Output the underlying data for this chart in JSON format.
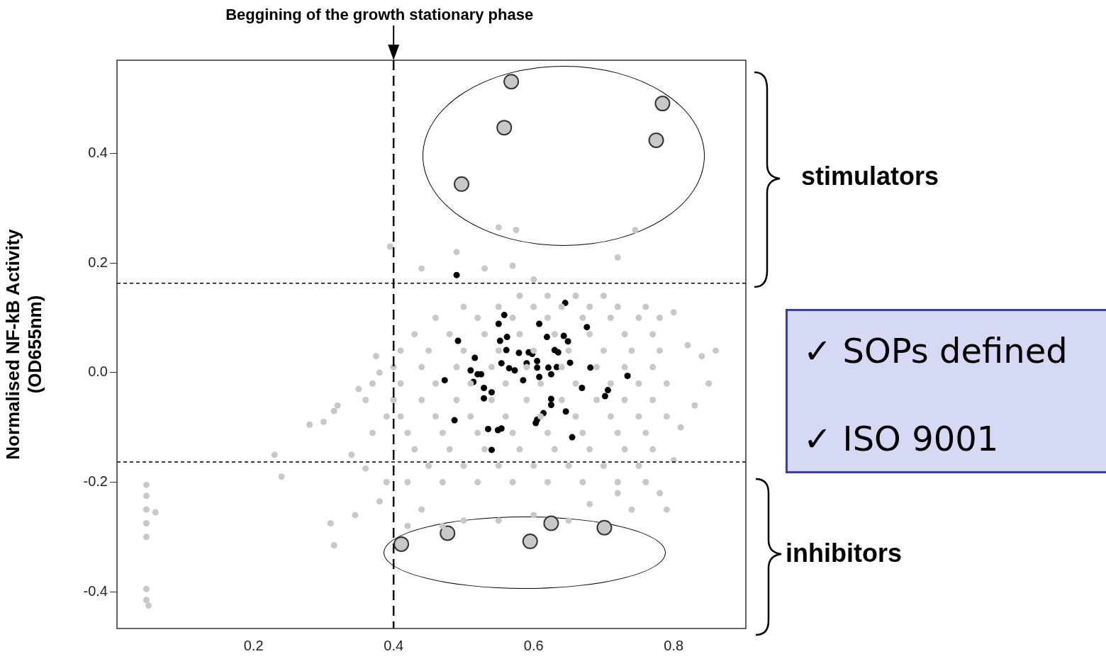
{
  "chart_data": {
    "type": "scatter",
    "ylabel": "Normalised NF-kB Activity\n(OD655nm)",
    "xlim": [
      0.005,
      0.903
    ],
    "ylim": [
      -0.467,
      0.57
    ],
    "xticks": [
      0.2,
      0.4,
      0.6,
      0.8
    ],
    "yticks": [
      -0.4,
      -0.2,
      {
        "value": 0,
        "label": "0.0"
      },
      0.2,
      0.4
    ],
    "grid": false,
    "legend": false,
    "marker": "circle",
    "ref_lines": [
      {
        "axis": "x",
        "value": 0.4,
        "label": "Beggining of the growth stationary phase",
        "line_style": "dashed",
        "color": "#000000"
      },
      {
        "axis": "y",
        "value": 0.163,
        "label": null,
        "line_style": "dotted",
        "color": "#000000"
      },
      {
        "axis": "y",
        "value": -0.163,
        "label": null,
        "line_style": "dotted",
        "color": "#000000"
      }
    ],
    "annotations": [
      "stimulators",
      "inhibitors",
      "✓  SOPs defined",
      "✓  ISO 9001"
    ],
    "series": [
      {
        "color": "#c8c8c8",
        "x": [
          0.047,
          0.047,
          0.047,
          0.047,
          0.047,
          0.06,
          0.047,
          0.047,
          0.05,
          0.23,
          0.24,
          0.28,
          0.3,
          0.315,
          0.32,
          0.31,
          0.315,
          0.34,
          0.345,
          0.36,
          0.38,
          0.39,
          0.395,
          0.49,
          0.55,
          0.575,
          0.745,
          0.72,
          0.44,
          0.53,
          0.57,
          0.6,
          0.35,
          0.36,
          0.37,
          0.38,
          0.375,
          0.39,
          0.37,
          0.8,
          0.82,
          0.84,
          0.86,
          0.85,
          0.83,
          0.81,
          0.8,
          0.79,
          0.78,
          0.76,
          0.74,
          0.72,
          0.68,
          0.65,
          0.6,
          0.55,
          0.5,
          0.47,
          0.44,
          0.42,
          0.58,
          0.62,
          0.66,
          0.7,
          0.5,
          0.55,
          0.6,
          0.64,
          0.68,
          0.72,
          0.76,
          0.46,
          0.52,
          0.57,
          0.62,
          0.67,
          0.71,
          0.75,
          0.78,
          0.43,
          0.48,
          0.53,
          0.58,
          0.63,
          0.68,
          0.73,
          0.77,
          0.41,
          0.45,
          0.5,
          0.55,
          0.6,
          0.65,
          0.7,
          0.74,
          0.78,
          0.4,
          0.44,
          0.49,
          0.54,
          0.59,
          0.64,
          0.69,
          0.73,
          0.77,
          0.41,
          0.46,
          0.51,
          0.56,
          0.61,
          0.66,
          0.71,
          0.75,
          0.79,
          0.4,
          0.44,
          0.49,
          0.54,
          0.59,
          0.64,
          0.69,
          0.73,
          0.77,
          0.41,
          0.46,
          0.51,
          0.56,
          0.61,
          0.66,
          0.71,
          0.75,
          0.79,
          0.42,
          0.47,
          0.52,
          0.57,
          0.62,
          0.67,
          0.72,
          0.76,
          0.43,
          0.48,
          0.53,
          0.58,
          0.63,
          0.68,
          0.73,
          0.77,
          0.45,
          0.5,
          0.55,
          0.6,
          0.65,
          0.7,
          0.75,
          0.42,
          0.47,
          0.52,
          0.57,
          0.62,
          0.67,
          0.72
        ],
        "values": [
          -0.205,
          -0.225,
          -0.25,
          -0.275,
          -0.3,
          -0.255,
          -0.395,
          -0.415,
          -0.425,
          -0.15,
          -0.19,
          -0.095,
          -0.09,
          -0.07,
          -0.06,
          -0.275,
          -0.315,
          -0.15,
          -0.26,
          -0.175,
          -0.235,
          -0.2,
          0.23,
          0.22,
          0.265,
          0.26,
          0.26,
          0.21,
          0.19,
          0.19,
          0.195,
          0.17,
          -0.03,
          -0.05,
          -0.02,
          0.0,
          0.03,
          -0.08,
          -0.11,
          0.11,
          0.05,
          0.03,
          0.04,
          -0.02,
          -0.06,
          -0.1,
          -0.16,
          -0.25,
          -0.22,
          -0.2,
          -0.25,
          -0.22,
          -0.24,
          -0.27,
          -0.26,
          -0.27,
          -0.27,
          -0.28,
          -0.25,
          -0.28,
          0.14,
          0.14,
          0.14,
          0.14,
          0.12,
          0.12,
          0.12,
          0.12,
          0.12,
          0.12,
          0.12,
          0.1,
          0.1,
          0.1,
          0.1,
          0.1,
          0.1,
          0.1,
          0.1,
          0.07,
          0.07,
          0.07,
          0.07,
          0.07,
          0.07,
          0.07,
          0.07,
          0.04,
          0.04,
          0.04,
          0.04,
          0.04,
          0.04,
          0.04,
          0.04,
          0.04,
          0.01,
          0.01,
          0.01,
          0.01,
          0.01,
          0.01,
          0.01,
          0.01,
          0.01,
          -0.02,
          -0.02,
          -0.02,
          -0.02,
          -0.02,
          -0.02,
          -0.02,
          -0.02,
          -0.02,
          -0.05,
          -0.05,
          -0.05,
          -0.05,
          -0.05,
          -0.05,
          -0.05,
          -0.05,
          -0.05,
          -0.08,
          -0.08,
          -0.08,
          -0.08,
          -0.08,
          -0.08,
          -0.08,
          -0.08,
          -0.08,
          -0.11,
          -0.11,
          -0.11,
          -0.11,
          -0.11,
          -0.11,
          -0.11,
          -0.11,
          -0.14,
          -0.14,
          -0.14,
          -0.14,
          -0.14,
          -0.14,
          -0.14,
          -0.14,
          -0.17,
          -0.17,
          -0.17,
          -0.17,
          -0.17,
          -0.17,
          -0.17,
          -0.2,
          -0.2,
          -0.2,
          -0.2,
          -0.2,
          -0.2,
          -0.2
        ]
      },
      {
        "color": "#000000",
        "x": [
          0.49,
          0.645,
          0.558,
          0.55,
          0.608,
          0.676,
          0.492,
          0.552,
          0.562,
          0.619,
          0.643,
          0.649,
          0.561,
          0.579,
          0.593,
          0.598,
          0.63,
          0.635,
          0.516,
          0.59,
          0.605,
          0.652,
          0.554,
          0.565,
          0.573,
          0.605,
          0.621,
          0.633,
          0.681,
          0.51,
          0.52,
          0.525,
          0.473,
          0.514,
          0.585,
          0.608,
          0.625,
          0.734,
          0.529,
          0.54,
          0.529,
          0.669,
          0.706,
          0.702,
          0.625,
          0.625,
          0.646,
          0.614,
          0.605,
          0.603,
          0.487,
          0.535,
          0.549,
          0.554,
          0.655,
          0.54
        ],
        "values": [
          0.178,
          0.127,
          0.105,
          0.089,
          0.089,
          0.083,
          0.058,
          0.058,
          0.065,
          0.065,
          0.067,
          0.057,
          0.041,
          0.036,
          0.037,
          0.034,
          0.041,
          0.037,
          0.027,
          0.017,
          0.021,
          0.018,
          0.017,
          0.008,
          0.004,
          0.009,
          0.009,
          0.01,
          0.009,
          0.004,
          -0.003,
          -0.003,
          -0.014,
          -0.017,
          -0.014,
          -0.008,
          -0.003,
          -0.006,
          -0.028,
          -0.036,
          -0.047,
          -0.028,
          -0.032,
          -0.043,
          -0.048,
          -0.059,
          -0.071,
          -0.074,
          -0.086,
          -0.092,
          -0.087,
          -0.103,
          -0.105,
          -0.102,
          -0.118,
          -0.141
        ]
      },
      {
        "color": "#c8c8c8",
        "x": [
          0.568,
          0.558,
          0.497,
          0.784,
          0.775,
          0.411,
          0.477,
          0.595,
          0.625,
          0.701
        ],
        "values": [
          0.531,
          0.447,
          0.344,
          0.491,
          0.424,
          -0.313,
          -0.293,
          -0.308,
          -0.275,
          -0.283
        ]
      }
    ]
  }
}
